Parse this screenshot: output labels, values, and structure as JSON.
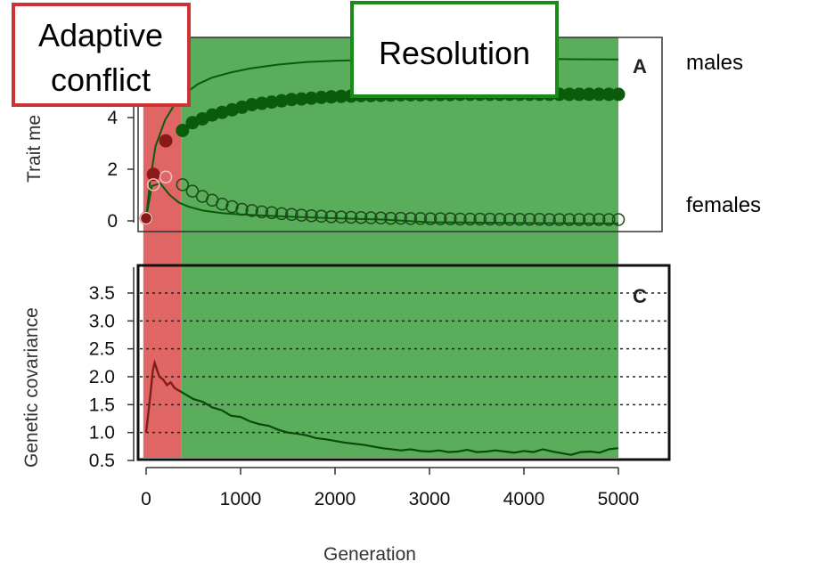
{
  "phases": {
    "conflict_label_line1": "Adaptive",
    "conflict_label_line2": "conflict",
    "conflict_color": "#e06666",
    "conflict_border": "#cc3333",
    "conflict_range": [
      -30,
      370
    ],
    "resolution_label": "Resolution",
    "resolution_color": "#5aad5a",
    "resolution_border": "#1a8a1a",
    "resolution_range": [
      370,
      5000
    ]
  },
  "side_labels": {
    "males": "males",
    "females": "females"
  },
  "chart_data": [
    {
      "type": "line",
      "panel_letter": "A",
      "ylabel": "Trait me",
      "yticks": [
        "0",
        "2",
        "4"
      ],
      "ylim": [
        -0.6,
        6.7
      ],
      "xlim": [
        -60,
        5500
      ],
      "series": [
        {
          "name": "males",
          "marker": "filled-circle",
          "color": "#0a5c0a",
          "x": [
            0,
            77,
            208,
            385,
            490,
            595,
            700,
            805,
            910,
            1015,
            1120,
            1225,
            1330,
            1435,
            1540,
            1645,
            1750,
            1855,
            1960,
            2065,
            2170,
            2275,
            2380,
            2485,
            2590,
            2695,
            2800,
            2905,
            3010,
            3115,
            3220,
            3325,
            3430,
            3535,
            3640,
            3745,
            3850,
            3955,
            4060,
            4165,
            4270,
            4375,
            4480,
            4585,
            4690,
            4795,
            4900,
            5000
          ],
          "y": [
            0.1,
            1.8,
            3.1,
            3.5,
            3.8,
            3.95,
            4.1,
            4.2,
            4.3,
            4.4,
            4.5,
            4.55,
            4.6,
            4.65,
            4.7,
            4.72,
            4.75,
            4.78,
            4.8,
            4.82,
            4.83,
            4.85,
            4.85,
            4.86,
            4.87,
            4.88,
            4.88,
            4.88,
            4.89,
            4.89,
            4.89,
            4.9,
            4.9,
            4.9,
            4.9,
            4.9,
            4.9,
            4.9,
            4.9,
            4.9,
            4.9,
            4.9,
            4.9,
            4.9,
            4.9,
            4.9,
            4.9,
            4.9
          ]
        },
        {
          "name": "females",
          "marker": "open-circle",
          "color": "#0a5c0a",
          "x": [
            0,
            77,
            208,
            385,
            490,
            595,
            700,
            805,
            910,
            1015,
            1120,
            1225,
            1330,
            1435,
            1540,
            1645,
            1750,
            1855,
            1960,
            2065,
            2170,
            2275,
            2380,
            2485,
            2590,
            2695,
            2800,
            2905,
            3010,
            3115,
            3220,
            3325,
            3430,
            3535,
            3640,
            3745,
            3850,
            3955,
            4060,
            4165,
            4270,
            4375,
            4480,
            4585,
            4690,
            4795,
            4900,
            5000
          ],
          "y": [
            0.1,
            1.4,
            1.7,
            1.4,
            1.15,
            0.95,
            0.8,
            0.65,
            0.55,
            0.45,
            0.4,
            0.35,
            0.32,
            0.28,
            0.25,
            0.22,
            0.2,
            0.18,
            0.16,
            0.15,
            0.14,
            0.13,
            0.12,
            0.11,
            0.1,
            0.1,
            0.09,
            0.09,
            0.08,
            0.08,
            0.08,
            0.07,
            0.07,
            0.07,
            0.07,
            0.06,
            0.06,
            0.06,
            0.06,
            0.06,
            0.05,
            0.05,
            0.05,
            0.05,
            0.05,
            0.05,
            0.05,
            0.05
          ]
        },
        {
          "name": "males-curve",
          "marker": "none",
          "color": "#0a5c0a",
          "x": [
            0,
            40,
            100,
            200,
            300,
            400,
            550,
            700,
            900,
            1100,
            1400,
            1700,
            2000,
            2500,
            3000,
            3500,
            4000,
            4500,
            5000
          ],
          "y": [
            0.1,
            1.5,
            2.9,
            3.9,
            4.5,
            4.9,
            5.3,
            5.55,
            5.75,
            5.9,
            6.05,
            6.15,
            6.2,
            6.25,
            6.27,
            6.27,
            6.27,
            6.26,
            6.25
          ]
        },
        {
          "name": "females-curve",
          "marker": "none",
          "color": "#0a5c0a",
          "x": [
            0,
            60,
            150,
            250,
            350,
            450,
            600,
            800,
            1000,
            1300,
            1600,
            2000,
            2500,
            3000,
            4000,
            5000
          ],
          "y": [
            0.1,
            1.35,
            1.45,
            1.0,
            0.7,
            0.55,
            0.4,
            0.3,
            0.25,
            0.2,
            0.15,
            0.1,
            0.05,
            -0.05,
            -0.08,
            -0.1
          ]
        }
      ]
    },
    {
      "type": "line",
      "panel_letter": "C",
      "ylabel": "Genetic covariance",
      "xlabel": "Generation",
      "yticks": [
        "0.5",
        "1.0",
        "1.5",
        "2.0",
        "2.5",
        "3.0",
        "3.5"
      ],
      "xticks": [
        "0",
        "1000",
        "2000",
        "3000",
        "4000",
        "5000"
      ],
      "ylim": [
        0.5,
        4.0
      ],
      "xlim": [
        -60,
        5500
      ],
      "gridlines": [
        1.0,
        1.5,
        2.0,
        2.5,
        3.0,
        3.5
      ],
      "series": [
        {
          "name": "covariance",
          "color": "#0a4a0a",
          "x": [
            0,
            40,
            70,
            90,
            110,
            140,
            180,
            220,
            260,
            300,
            350,
            400,
            500,
            600,
            700,
            800,
            900,
            1000,
            1100,
            1200,
            1300,
            1400,
            1500,
            1600,
            1700,
            1800,
            1900,
            2000,
            2100,
            2200,
            2300,
            2400,
            2500,
            2600,
            2700,
            2800,
            2900,
            3000,
            3100,
            3200,
            3300,
            3400,
            3500,
            3600,
            3700,
            3800,
            3900,
            4000,
            4100,
            4200,
            4300,
            4400,
            4500,
            4600,
            4700,
            4800,
            4900,
            5000
          ],
          "y": [
            1.0,
            1.6,
            2.1,
            2.25,
            2.15,
            2.0,
            1.95,
            1.85,
            1.9,
            1.8,
            1.75,
            1.7,
            1.6,
            1.55,
            1.45,
            1.4,
            1.3,
            1.28,
            1.2,
            1.15,
            1.12,
            1.05,
            1.0,
            0.98,
            0.95,
            0.9,
            0.88,
            0.85,
            0.82,
            0.8,
            0.78,
            0.75,
            0.72,
            0.7,
            0.68,
            0.7,
            0.67,
            0.66,
            0.68,
            0.65,
            0.66,
            0.69,
            0.65,
            0.66,
            0.68,
            0.66,
            0.64,
            0.67,
            0.65,
            0.7,
            0.66,
            0.63,
            0.6,
            0.65,
            0.66,
            0.64,
            0.7,
            0.72
          ]
        }
      ]
    }
  ]
}
